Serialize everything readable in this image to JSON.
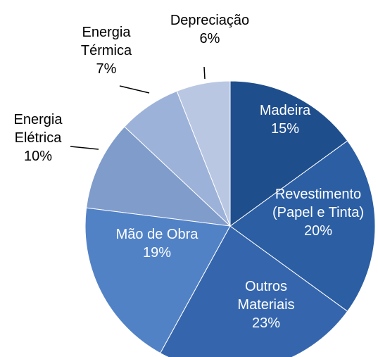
{
  "chart_data": {
    "type": "pie",
    "categories": [
      "Madeira",
      "Revestimento (Papel e Tinta)",
      "Outros Materiais",
      "Mão de Obra",
      "Energia Elétrica",
      "Energia Térmica",
      "Depreciação"
    ],
    "values": [
      15,
      20,
      23,
      19,
      10,
      7,
      6
    ],
    "value_labels": [
      "15%",
      "20%",
      "23%",
      "19%",
      "10%",
      "7%",
      "6%"
    ],
    "colors": [
      "#1f4e8c",
      "#2b5ea3",
      "#3566ad",
      "#5282c6",
      "#7f9ccb",
      "#9db2d8",
      "#b9c7e3"
    ]
  }
}
